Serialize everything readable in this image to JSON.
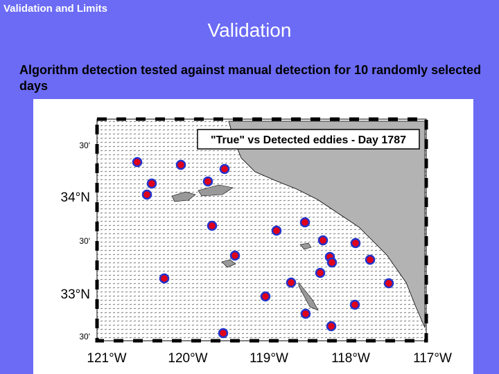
{
  "header": "Validation and Limits",
  "title": "Validation",
  "body": "Algorithm detection tested against manual detection for 10 randomly selected days",
  "figure": {
    "title": "\"True\" vs Detected eddies - Day 1787",
    "y_labels": [
      "30'",
      "34°N",
      "30'",
      "33°N",
      "30'"
    ],
    "x_labels": [
      "121°W",
      "120°W",
      "119°W",
      "118°W",
      "117°W"
    ]
  }
}
